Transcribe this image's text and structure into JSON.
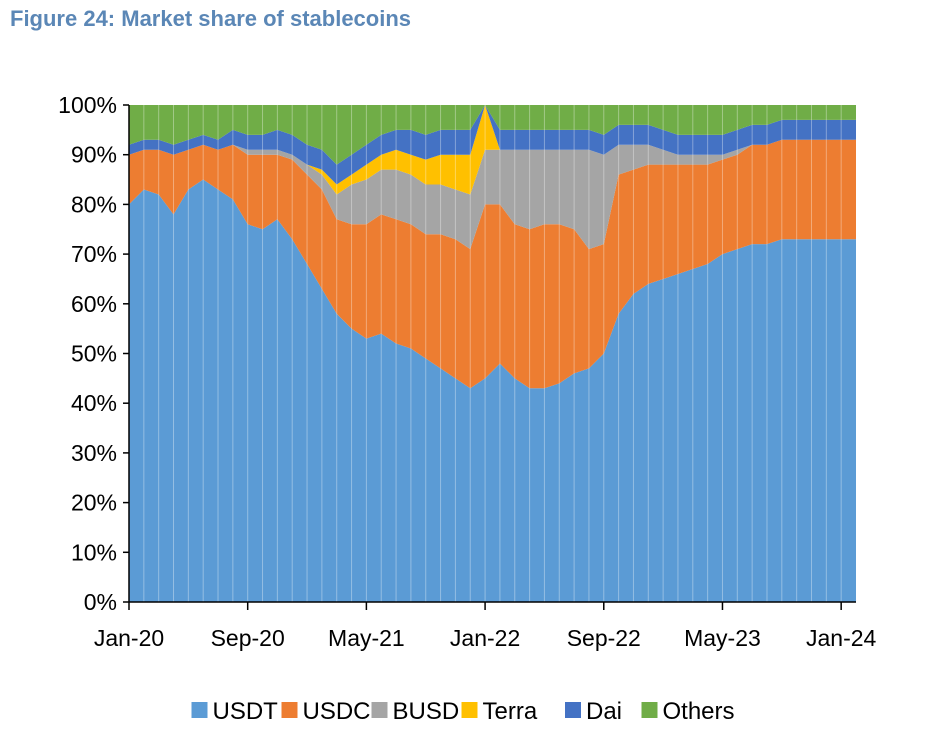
{
  "figure_title": "Figure 24: Market share of stablecoins",
  "chart_data": {
    "type": "area",
    "stacked": true,
    "percent_stacked": true,
    "title": "",
    "xlabel": "",
    "ylabel": "",
    "ylim": [
      0,
      100
    ],
    "y_ticks": [
      "0%",
      "10%",
      "20%",
      "30%",
      "40%",
      "50%",
      "60%",
      "70%",
      "80%",
      "90%",
      "100%"
    ],
    "x_ticks": [
      "Jan-20",
      "Sep-20",
      "May-21",
      "Jan-22",
      "Sep-22",
      "May-23",
      "Jan-24"
    ],
    "x": [
      "2020-01",
      "2020-02",
      "2020-03",
      "2020-04",
      "2020-05",
      "2020-06",
      "2020-07",
      "2020-08",
      "2020-09",
      "2020-10",
      "2020-11",
      "2020-12",
      "2021-01",
      "2021-02",
      "2021-03",
      "2021-04",
      "2021-05",
      "2021-06",
      "2021-07",
      "2021-08",
      "2021-09",
      "2021-10",
      "2021-11",
      "2021-12",
      "2022-01",
      "2022-02",
      "2022-03",
      "2022-04",
      "2022-05",
      "2022-06",
      "2022-07",
      "2022-08",
      "2022-09",
      "2022-10",
      "2022-11",
      "2022-12",
      "2023-01",
      "2023-02",
      "2023-03",
      "2023-04",
      "2023-05",
      "2023-06",
      "2023-07",
      "2023-08",
      "2023-09",
      "2023-10",
      "2023-11",
      "2023-12",
      "2024-01",
      "2024-02"
    ],
    "grid": false,
    "legend_position": "bottom",
    "series": [
      {
        "name": "USDT",
        "color": "#5b9bd5",
        "values": [
          80,
          83,
          82,
          78,
          83,
          85,
          83,
          81,
          76,
          75,
          77,
          73,
          68,
          63,
          58,
          55,
          53,
          54,
          52,
          51,
          49,
          47,
          45,
          43,
          45,
          48,
          45,
          43,
          43,
          44,
          46,
          47,
          50,
          58,
          62,
          64,
          65,
          66,
          67,
          68,
          70,
          71,
          72,
          72,
          73,
          73,
          73,
          73,
          73,
          73
        ]
      },
      {
        "name": "USDC",
        "color": "#ed7d31",
        "values": [
          10,
          8,
          9,
          12,
          8,
          7,
          8,
          11,
          14,
          15,
          13,
          16,
          18,
          20,
          19,
          21,
          23,
          24,
          25,
          25,
          25,
          27,
          28,
          28,
          35,
          32,
          31,
          32,
          33,
          32,
          29,
          24,
          22,
          28,
          25,
          24,
          23,
          22,
          21,
          20,
          19,
          19,
          20,
          20,
          20,
          20,
          20,
          20,
          20,
          20
        ]
      },
      {
        "name": "BUSD",
        "color": "#a5a5a5",
        "values": [
          0,
          0,
          0,
          0,
          0,
          0,
          0,
          0,
          1,
          1,
          1,
          1,
          2,
          3,
          5,
          8,
          9,
          9,
          10,
          10,
          10,
          10,
          10,
          11,
          11,
          11,
          15,
          16,
          15,
          15,
          16,
          20,
          18,
          6,
          5,
          4,
          3,
          2,
          2,
          2,
          1,
          1,
          0,
          0,
          0,
          0,
          0,
          0,
          0,
          0
        ]
      },
      {
        "name": "Terra",
        "color": "#ffc000",
        "values": [
          0,
          0,
          0,
          0,
          0,
          0,
          0,
          0,
          0,
          0,
          0,
          0,
          0,
          1,
          2,
          2,
          3,
          3,
          4,
          4,
          5,
          6,
          7,
          8,
          9,
          0,
          0,
          0,
          0,
          0,
          0,
          0,
          0,
          0,
          0,
          0,
          0,
          0,
          0,
          0,
          0,
          0,
          0,
          0,
          0,
          0,
          0,
          0,
          0,
          0
        ]
      },
      {
        "name": "Dai",
        "color": "#4472c4",
        "values": [
          2,
          2,
          2,
          2,
          2,
          2,
          2,
          3,
          3,
          3,
          4,
          4,
          4,
          4,
          4,
          4,
          4,
          4,
          4,
          5,
          5,
          5,
          5,
          5,
          0,
          4,
          4,
          4,
          4,
          4,
          4,
          4,
          4,
          4,
          4,
          4,
          4,
          4,
          4,
          4,
          4,
          4,
          4,
          4,
          4,
          4,
          4,
          4,
          4,
          4
        ]
      },
      {
        "name": "Others",
        "color": "#70ad47",
        "values": [
          8,
          7,
          7,
          8,
          7,
          6,
          7,
          5,
          6,
          6,
          5,
          6,
          8,
          9,
          12,
          10,
          8,
          6,
          5,
          5,
          6,
          5,
          5,
          5,
          0,
          5,
          5,
          5,
          5,
          5,
          5,
          5,
          6,
          4,
          4,
          4,
          5,
          6,
          6,
          6,
          6,
          5,
          4,
          4,
          3,
          3,
          3,
          3,
          3,
          3
        ]
      }
    ]
  }
}
